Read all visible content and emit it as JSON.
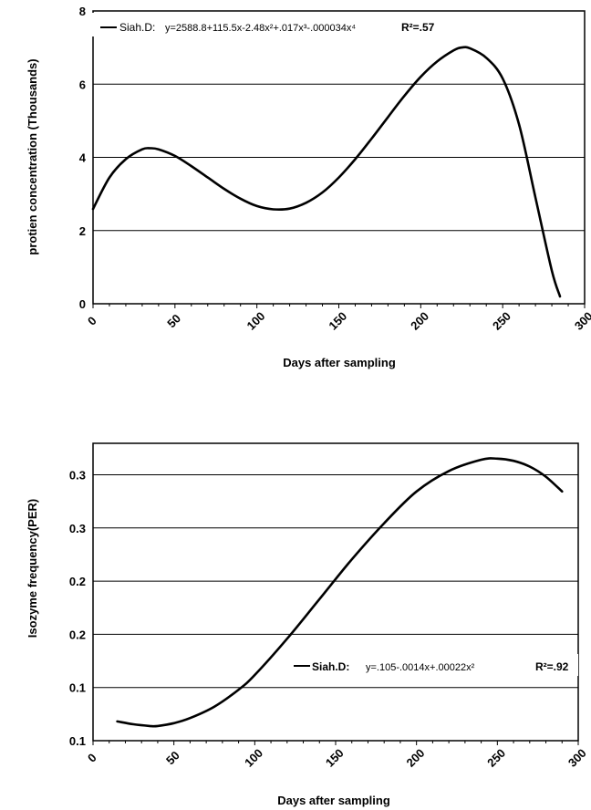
{
  "chart_data": [
    {
      "type": "line",
      "xlabel": "Days after sampling",
      "ylabel": "protien concentration  (Thousands)",
      "xlim": [
        0,
        300
      ],
      "ylim": [
        0,
        8
      ],
      "x_ticks": [
        "0",
        "50",
        "100",
        "150",
        "200",
        "250",
        "300"
      ],
      "y_ticks": [
        "0",
        "2",
        "4",
        "6",
        "8"
      ],
      "grid": true,
      "legend_position": "top-left",
      "series": [
        {
          "name": "Siah.D",
          "equation": "y=2588.8+115.5x-2.48x²+.017x³-.000034x⁴",
          "r2_label": "R²=.57",
          "x": [
            0,
            10,
            20,
            30,
            35,
            40,
            50,
            60,
            70,
            80,
            90,
            100,
            110,
            120,
            130,
            140,
            150,
            160,
            170,
            180,
            190,
            200,
            210,
            220,
            225,
            230,
            240,
            250,
            260,
            270,
            280,
            285
          ],
          "y": [
            2.59,
            3.45,
            3.95,
            4.22,
            4.25,
            4.22,
            4.04,
            3.76,
            3.45,
            3.14,
            2.87,
            2.67,
            2.58,
            2.6,
            2.76,
            3.04,
            3.45,
            3.95,
            4.51,
            5.1,
            5.68,
            6.2,
            6.62,
            6.92,
            7.0,
            6.98,
            6.72,
            6.15,
            4.9,
            2.9,
            0.9,
            0.2
          ]
        }
      ]
    },
    {
      "type": "line",
      "xlabel": "Days after sampling",
      "ylabel": "Isozyme frequency(PER)",
      "xlim": [
        0,
        300
      ],
      "y_ticks": [
        "0.1",
        "0.1",
        "0.2",
        "0.2",
        "0.3",
        "0.3"
      ],
      "x_ticks": [
        "0",
        "50",
        "100",
        "150",
        "200",
        "250",
        "300"
      ],
      "grid": true,
      "legend_position": "bottom-right",
      "series": [
        {
          "name": "Siah.D",
          "equation": "y=.105-.0014x+.00022x²",
          "r2_label": "R²=.92",
          "x": [
            15,
            25,
            35,
            40,
            50,
            60,
            75,
            90,
            100,
            120,
            140,
            160,
            180,
            200,
            220,
            240,
            250,
            260,
            270,
            280,
            290
          ],
          "y": [
            0.117,
            0.1145,
            0.113,
            0.113,
            0.1155,
            0.12,
            0.13,
            0.145,
            0.158,
            0.19,
            0.225,
            0.26,
            0.292,
            0.32,
            0.338,
            0.348,
            0.349,
            0.347,
            0.342,
            0.333,
            0.32
          ]
        }
      ]
    }
  ]
}
